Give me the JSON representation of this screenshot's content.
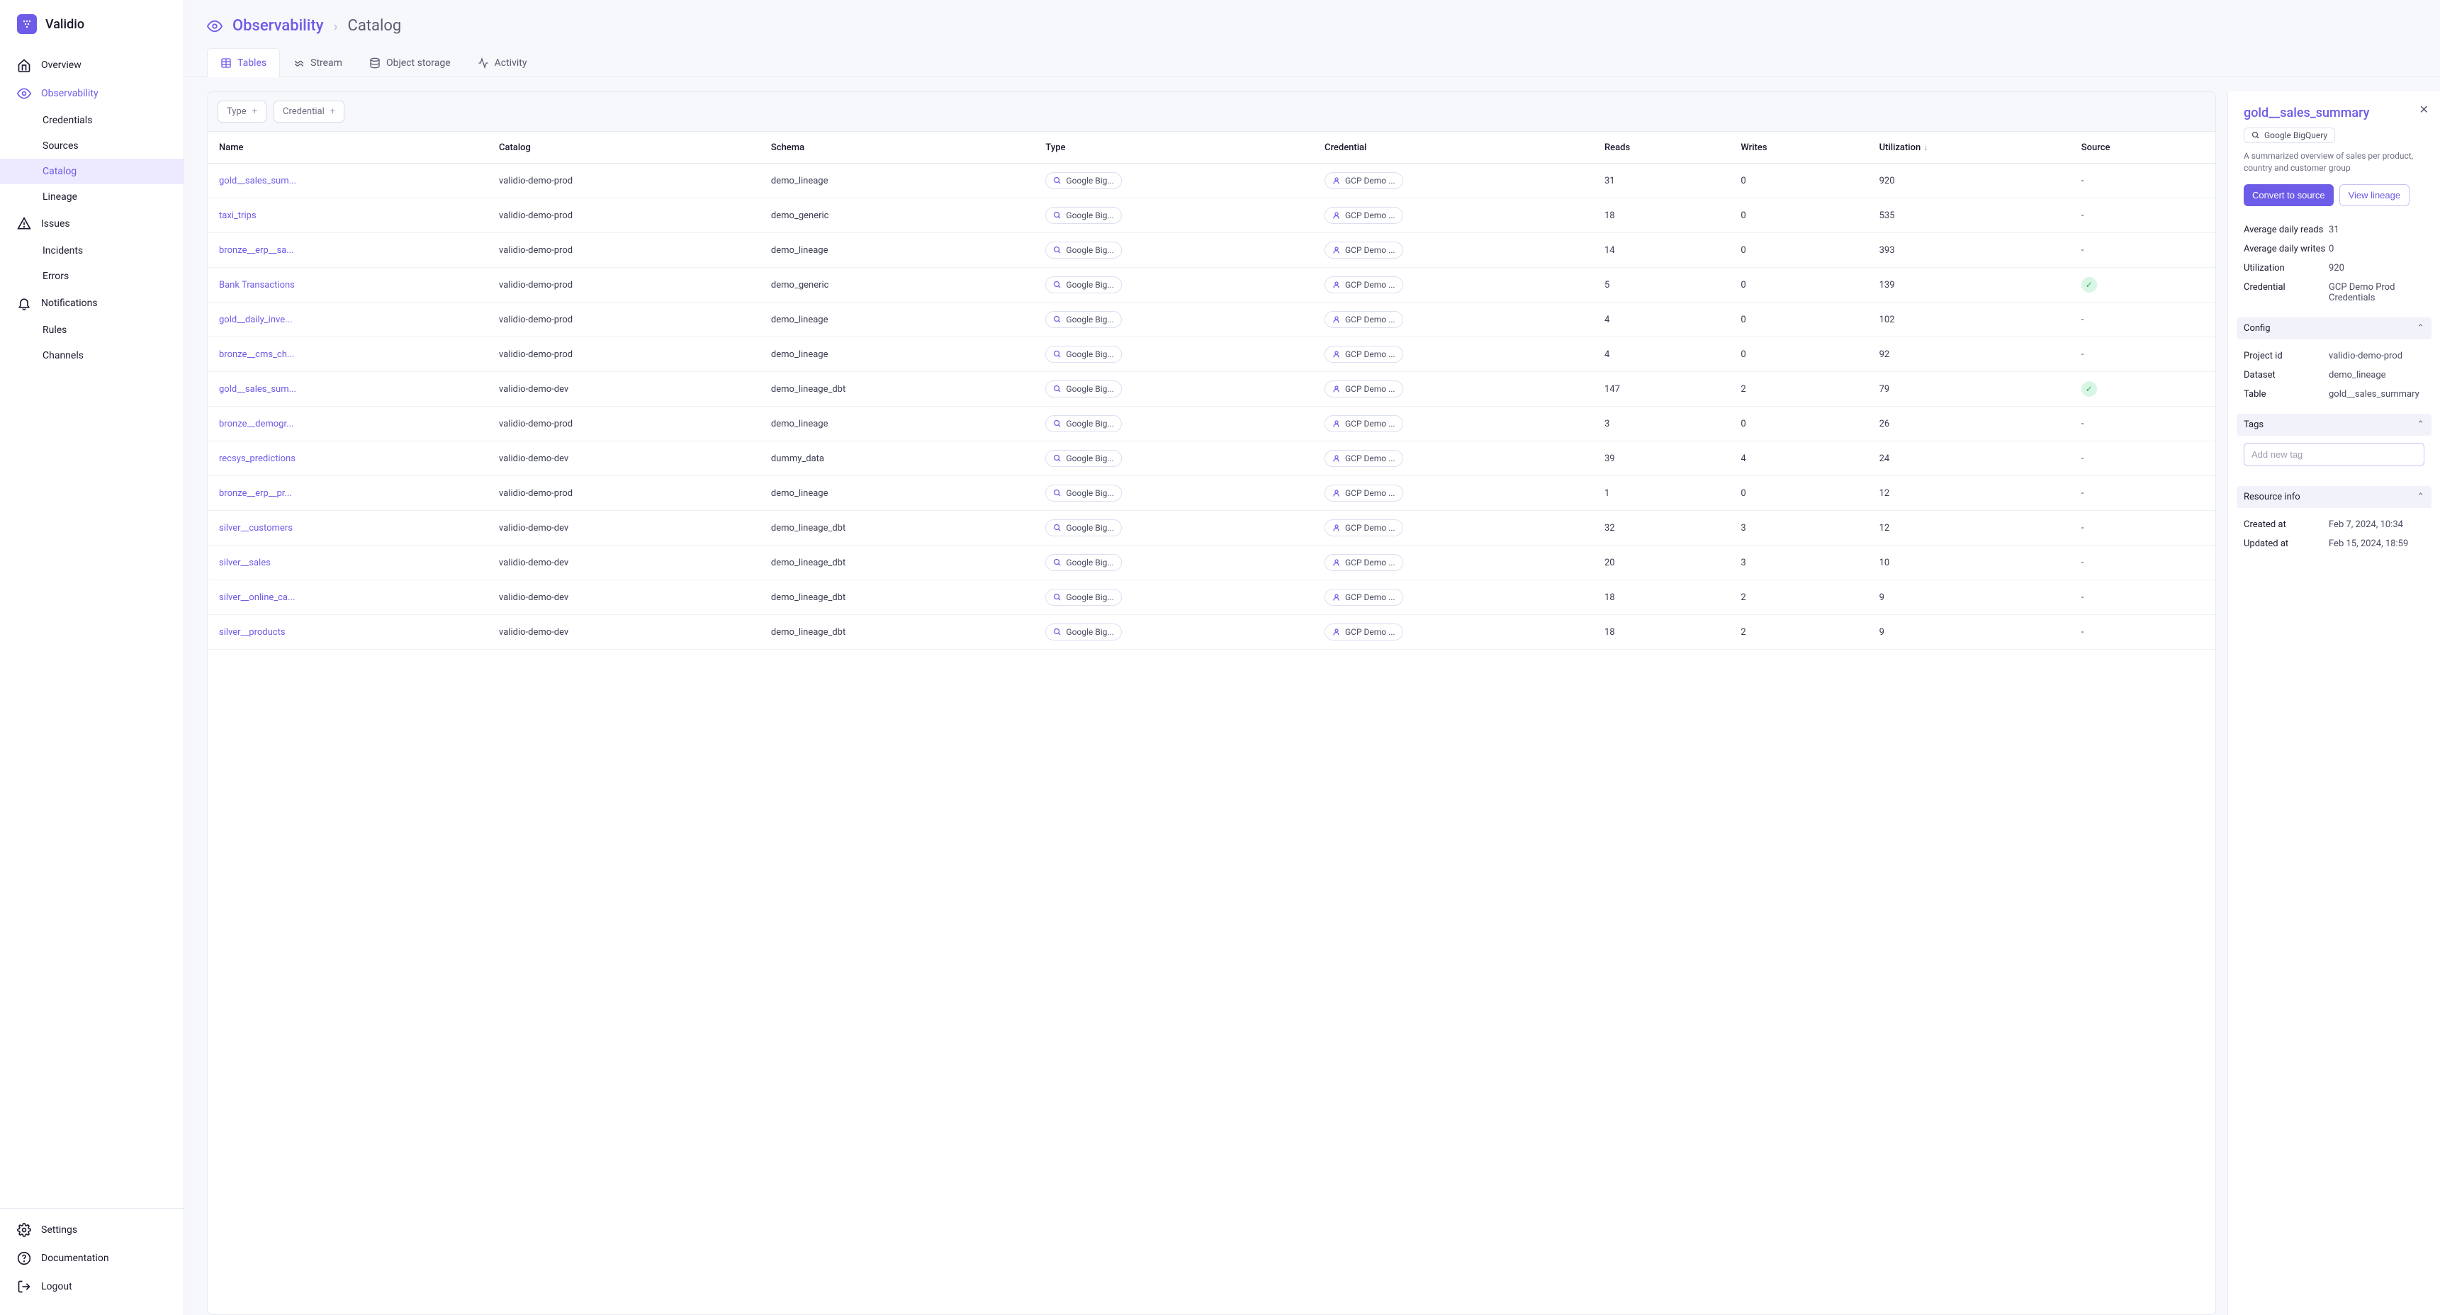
{
  "brand": {
    "name": "Validio",
    "mark": "V"
  },
  "sidebar": {
    "main": [
      {
        "label": "Overview",
        "icon": "home"
      },
      {
        "label": "Observability",
        "icon": "eye",
        "active": true,
        "children": [
          {
            "label": "Credentials"
          },
          {
            "label": "Sources"
          },
          {
            "label": "Catalog",
            "active": true
          },
          {
            "label": "Lineage"
          }
        ]
      },
      {
        "label": "Issues",
        "icon": "alert",
        "children": [
          {
            "label": "Incidents"
          },
          {
            "label": "Errors"
          }
        ]
      },
      {
        "label": "Notifications",
        "icon": "bell",
        "children": [
          {
            "label": "Rules"
          },
          {
            "label": "Channels"
          }
        ]
      }
    ],
    "footer": [
      {
        "label": "Settings",
        "icon": "gear"
      },
      {
        "label": "Documentation",
        "icon": "help"
      },
      {
        "label": "Logout",
        "icon": "logout"
      }
    ]
  },
  "breadcrumb": {
    "root": "Observability",
    "current": "Catalog"
  },
  "tabs": [
    {
      "label": "Tables",
      "icon": "table",
      "active": true
    },
    {
      "label": "Stream",
      "icon": "stream"
    },
    {
      "label": "Object storage",
      "icon": "storage"
    },
    {
      "label": "Activity",
      "icon": "activity"
    }
  ],
  "filters": [
    {
      "label": "Type"
    },
    {
      "label": "Credential"
    }
  ],
  "columns": [
    "Name",
    "Catalog",
    "Schema",
    "Type",
    "Credential",
    "Reads",
    "Writes",
    "Utilization",
    "Source"
  ],
  "sorted_column": "Utilization",
  "type_label": "Google Big...",
  "credential_label": "GCP Demo ...",
  "rows": [
    {
      "name": "gold__sales_sum...",
      "catalog": "validio-demo-prod",
      "schema": "demo_lineage",
      "reads": "31",
      "writes": "0",
      "util": "920",
      "source": "-"
    },
    {
      "name": "taxi_trips",
      "catalog": "validio-demo-prod",
      "schema": "demo_generic",
      "reads": "18",
      "writes": "0",
      "util": "535",
      "source": "-"
    },
    {
      "name": "bronze__erp__sa...",
      "catalog": "validio-demo-prod",
      "schema": "demo_lineage",
      "reads": "14",
      "writes": "0",
      "util": "393",
      "source": "-"
    },
    {
      "name": "Bank Transactions",
      "catalog": "validio-demo-prod",
      "schema": "demo_generic",
      "reads": "5",
      "writes": "0",
      "util": "139",
      "source": "check"
    },
    {
      "name": "gold__daily_inve...",
      "catalog": "validio-demo-prod",
      "schema": "demo_lineage",
      "reads": "4",
      "writes": "0",
      "util": "102",
      "source": "-"
    },
    {
      "name": "bronze__cms_ch...",
      "catalog": "validio-demo-prod",
      "schema": "demo_lineage",
      "reads": "4",
      "writes": "0",
      "util": "92",
      "source": "-"
    },
    {
      "name": "gold__sales_sum...",
      "catalog": "validio-demo-dev",
      "schema": "demo_lineage_dbt",
      "reads": "147",
      "writes": "2",
      "util": "79",
      "source": "check"
    },
    {
      "name": "bronze__demogr...",
      "catalog": "validio-demo-prod",
      "schema": "demo_lineage",
      "reads": "3",
      "writes": "0",
      "util": "26",
      "source": "-"
    },
    {
      "name": "recsys_predictions",
      "catalog": "validio-demo-dev",
      "schema": "dummy_data",
      "reads": "39",
      "writes": "4",
      "util": "24",
      "source": "-"
    },
    {
      "name": "bronze__erp__pr...",
      "catalog": "validio-demo-prod",
      "schema": "demo_lineage",
      "reads": "1",
      "writes": "0",
      "util": "12",
      "source": "-"
    },
    {
      "name": "silver__customers",
      "catalog": "validio-demo-dev",
      "schema": "demo_lineage_dbt",
      "reads": "32",
      "writes": "3",
      "util": "12",
      "source": "-"
    },
    {
      "name": "silver__sales",
      "catalog": "validio-demo-dev",
      "schema": "demo_lineage_dbt",
      "reads": "20",
      "writes": "3",
      "util": "10",
      "source": "-"
    },
    {
      "name": "silver__online_ca...",
      "catalog": "validio-demo-dev",
      "schema": "demo_lineage_dbt",
      "reads": "18",
      "writes": "2",
      "util": "9",
      "source": "-"
    },
    {
      "name": "silver__products",
      "catalog": "validio-demo-dev",
      "schema": "demo_lineage_dbt",
      "reads": "18",
      "writes": "2",
      "util": "9",
      "source": "-"
    }
  ],
  "detail": {
    "title": "gold__sales_summary",
    "type_label": "Google BigQuery",
    "description": "A summarized overview of sales per product, country and customer group",
    "actions": {
      "primary": "Convert to source",
      "secondary": "View lineage"
    },
    "stats": [
      {
        "k": "Average daily reads",
        "v": "31"
      },
      {
        "k": "Average daily writes",
        "v": "0"
      },
      {
        "k": "Utilization",
        "v": "920"
      },
      {
        "k": "Credential",
        "v": "GCP Demo Prod Credentials"
      }
    ],
    "config_header": "Config",
    "config": [
      {
        "k": "Project id",
        "v": "validio-demo-prod"
      },
      {
        "k": "Dataset",
        "v": "demo_lineage"
      },
      {
        "k": "Table",
        "v": "gold__sales_summary"
      }
    ],
    "tags_header": "Tags",
    "tags_placeholder": "Add new tag",
    "resource_header": "Resource info",
    "resource": [
      {
        "k": "Created at",
        "v": "Feb 7, 2024, 10:34"
      },
      {
        "k": "Updated at",
        "v": "Feb 15, 2024, 18:59"
      }
    ]
  }
}
